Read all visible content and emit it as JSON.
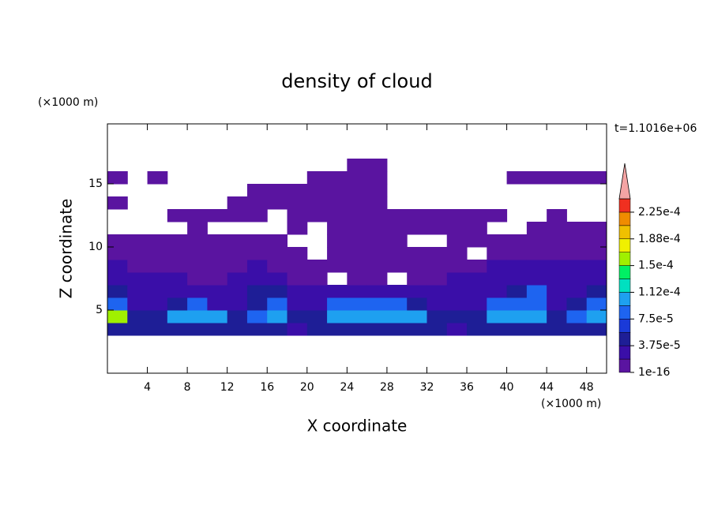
{
  "chart_data": {
    "type": "contour",
    "title": "density of cloud",
    "xlabel": "X coordinate",
    "ylabel": "Z coordinate",
    "xunit": "(×1000 m)",
    "yunit": "(×1000 m)",
    "annotation": "t=1.1016e+06",
    "xlim": [
      0,
      50
    ],
    "ylim": [
      0,
      19.75
    ],
    "xticks": [
      4,
      8,
      12,
      16,
      20,
      24,
      28,
      32,
      36,
      40,
      44,
      48
    ],
    "yticks": [
      5,
      10,
      15
    ],
    "x": [
      1,
      3,
      5,
      7,
      9,
      11,
      13,
      15,
      17,
      19,
      21,
      23,
      25,
      27,
      29,
      31,
      33,
      35,
      37,
      39,
      41,
      43,
      45,
      47,
      49
    ],
    "y": [
      3.5,
      4.5,
      5.5,
      6.5,
      7.5,
      8.5,
      9.5,
      10.5,
      11.5,
      12.5,
      13.5,
      14.5,
      15.5,
      16.5
    ],
    "levels": [
      1e-16,
      1.875e-05,
      3.75e-05,
      5.625e-05,
      7.5e-05,
      9.375e-05,
      0.0001125,
      0.00013125,
      0.00015,
      0.00016875,
      0.0001875,
      0.00020625,
      0.000225,
      0.00024375
    ],
    "colors": [
      "#5a14a0",
      "#3a0ea8",
      "#1e1e96",
      "#1a3ad8",
      "#1e64f0",
      "#1ea0f0",
      "#00e0c0",
      "#00f064",
      "#a0f000",
      "#f0f000",
      "#f0c000",
      "#f08c00",
      "#f03020"
    ],
    "extend_color": "#f4a4a4",
    "colorbar_ticks": [
      {
        "value": 1e-16,
        "label": "1e-16"
      },
      {
        "value": 3.75e-05,
        "label": "3.75e-5"
      },
      {
        "value": 7.5e-05,
        "label": "7.5e-5"
      },
      {
        "value": 0.0001125,
        "label": "1.12e-4"
      },
      {
        "value": 0.00015,
        "label": "1.5e-4"
      },
      {
        "value": 0.0001875,
        "label": "1.88e-4"
      },
      {
        "value": 0.000225,
        "label": "2.25e-4"
      }
    ],
    "z": [
      [
        5e-05,
        5e-05,
        5e-05,
        5e-05,
        5e-05,
        5e-05,
        5e-05,
        5e-05,
        5e-05,
        3e-05,
        5e-05,
        5e-05,
        5e-05,
        5e-05,
        5e-05,
        5e-05,
        5e-05,
        3e-05,
        5e-05,
        5e-05,
        5e-05,
        5e-05,
        5e-05,
        5e-05,
        5e-05
      ],
      [
        0.00016,
        5e-05,
        5e-05,
        0.00011,
        0.00011,
        0.00011,
        5e-05,
        8e-05,
        0.00011,
        5e-05,
        5e-05,
        0.00011,
        0.00011,
        0.00011,
        0.00011,
        0.00011,
        5e-05,
        5e-05,
        5e-05,
        0.00011,
        0.00011,
        0.00011,
        5e-05,
        8e-05,
        0.00011
      ],
      [
        8e-05,
        3e-05,
        3e-05,
        5e-05,
        8e-05,
        3e-05,
        3e-05,
        5e-05,
        8e-05,
        3e-05,
        3e-05,
        8e-05,
        8e-05,
        8e-05,
        8e-05,
        5e-05,
        3e-05,
        3e-05,
        3e-05,
        8e-05,
        8e-05,
        8e-05,
        3e-05,
        5e-05,
        8e-05
      ],
      [
        5e-05,
        3e-05,
        3e-05,
        3e-05,
        3e-05,
        3e-05,
        3e-05,
        5e-05,
        5e-05,
        3e-05,
        3e-05,
        3e-05,
        3e-05,
        3e-05,
        3e-05,
        3e-05,
        3e-05,
        3e-05,
        3e-05,
        3e-05,
        5e-05,
        8e-05,
        3e-05,
        3e-05,
        5e-05
      ],
      [
        3e-05,
        3e-05,
        3e-05,
        3e-05,
        1e-05,
        1e-05,
        3e-05,
        3e-05,
        3e-05,
        1e-05,
        1e-05,
        null,
        1e-05,
        1e-05,
        null,
        1e-05,
        1e-05,
        3e-05,
        3e-05,
        3e-05,
        3e-05,
        3e-05,
        3e-05,
        3e-05,
        3e-05
      ],
      [
        3e-05,
        1e-05,
        1e-05,
        1e-05,
        1e-05,
        1e-05,
        1e-05,
        3e-05,
        1e-05,
        1e-05,
        1e-05,
        1e-05,
        1e-05,
        1e-05,
        1e-05,
        1e-05,
        1e-05,
        1e-05,
        1e-05,
        3e-05,
        3e-05,
        3e-05,
        3e-05,
        3e-05,
        3e-05
      ],
      [
        1e-05,
        1e-05,
        1e-05,
        1e-05,
        1e-05,
        1e-05,
        1e-05,
        1e-05,
        1e-05,
        1e-05,
        null,
        1e-05,
        1e-05,
        1e-05,
        1e-05,
        1e-05,
        1e-05,
        1e-05,
        null,
        1e-05,
        1e-05,
        1e-05,
        1e-05,
        1e-05,
        1e-05
      ],
      [
        1e-05,
        1e-05,
        1e-05,
        1e-05,
        1e-05,
        1e-05,
        1e-05,
        1e-05,
        1e-05,
        null,
        null,
        1e-05,
        1e-05,
        1e-05,
        1e-05,
        null,
        null,
        1e-05,
        1e-05,
        1e-05,
        1e-05,
        1e-05,
        1e-05,
        1e-05,
        1e-05
      ],
      [
        null,
        null,
        null,
        null,
        1e-05,
        null,
        null,
        null,
        null,
        1e-05,
        null,
        1e-05,
        1e-05,
        1e-05,
        1e-05,
        1e-05,
        1e-05,
        1e-05,
        1e-05,
        null,
        null,
        1e-05,
        1e-05,
        1e-05,
        1e-05
      ],
      [
        null,
        null,
        null,
        1e-05,
        1e-05,
        1e-05,
        1e-05,
        1e-05,
        null,
        1e-05,
        1e-05,
        1e-05,
        1e-05,
        1e-05,
        1e-05,
        1e-05,
        1e-05,
        1e-05,
        1e-05,
        1e-05,
        null,
        null,
        1e-05,
        null,
        null
      ],
      [
        1e-05,
        null,
        null,
        null,
        null,
        null,
        1e-05,
        1e-05,
        1e-05,
        1e-05,
        1e-05,
        1e-05,
        1e-05,
        1e-05,
        null,
        null,
        null,
        null,
        null,
        null,
        null,
        null,
        null,
        null,
        null
      ],
      [
        null,
        null,
        null,
        null,
        null,
        null,
        null,
        1e-05,
        1e-05,
        1e-05,
        1e-05,
        1e-05,
        1e-05,
        1e-05,
        null,
        null,
        null,
        null,
        null,
        null,
        null,
        null,
        null,
        null,
        null
      ],
      [
        1e-05,
        null,
        1e-05,
        null,
        null,
        null,
        null,
        null,
        null,
        null,
        1e-05,
        1e-05,
        1e-05,
        1e-05,
        null,
        null,
        null,
        null,
        null,
        null,
        1e-05,
        1e-05,
        1e-05,
        1e-05,
        1e-05
      ],
      [
        null,
        null,
        null,
        null,
        null,
        null,
        null,
        null,
        null,
        null,
        null,
        null,
        1e-05,
        1e-05,
        null,
        null,
        null,
        null,
        null,
        null,
        null,
        null,
        null,
        null,
        null
      ]
    ]
  }
}
